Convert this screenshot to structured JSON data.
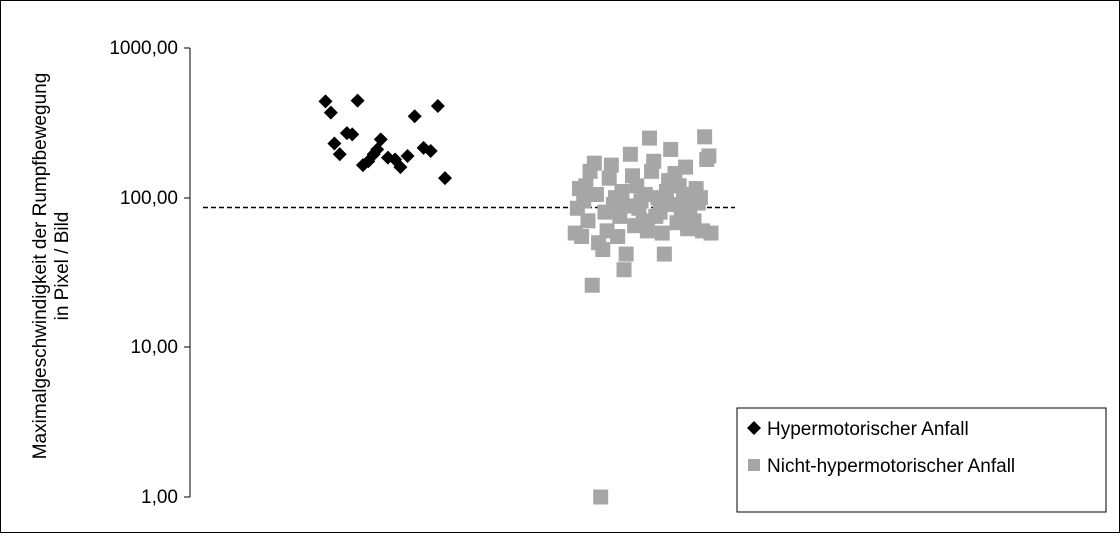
{
  "chart_data": {
    "type": "scatter",
    "title": "",
    "ylabel_lines": [
      "Maximalgeschwindigkeit der Rumpfbewegung",
      "in Pixel / Bild"
    ],
    "xlabel": "",
    "yscale": "log",
    "ylim": [
      1,
      1000
    ],
    "yticks": [
      {
        "value": 1,
        "label": "1,00"
      },
      {
        "value": 10,
        "label": "10,00"
      },
      {
        "value": 100,
        "label": "100,00"
      },
      {
        "value": 1000,
        "label": "1000,00"
      }
    ],
    "threshold": 86,
    "legend_position": "bottom-right",
    "series": [
      {
        "name": "Hypermotorischer Anfall",
        "marker": "diamond",
        "color": "#000000",
        "points": [
          {
            "x": 0.07,
            "y": 440
          },
          {
            "x": 0.1,
            "y": 370
          },
          {
            "x": 0.12,
            "y": 230
          },
          {
            "x": 0.15,
            "y": 195
          },
          {
            "x": 0.19,
            "y": 270
          },
          {
            "x": 0.22,
            "y": 265
          },
          {
            "x": 0.25,
            "y": 445
          },
          {
            "x": 0.28,
            "y": 165
          },
          {
            "x": 0.31,
            "y": 175
          },
          {
            "x": 0.34,
            "y": 195
          },
          {
            "x": 0.36,
            "y": 210
          },
          {
            "x": 0.38,
            "y": 245
          },
          {
            "x": 0.42,
            "y": 185
          },
          {
            "x": 0.46,
            "y": 180
          },
          {
            "x": 0.49,
            "y": 160
          },
          {
            "x": 0.53,
            "y": 190
          },
          {
            "x": 0.57,
            "y": 350
          },
          {
            "x": 0.62,
            "y": 215
          },
          {
            "x": 0.66,
            "y": 205
          },
          {
            "x": 0.7,
            "y": 410
          },
          {
            "x": 0.74,
            "y": 135
          }
        ]
      },
      {
        "name": "Nicht-hypermotorischer Anfall",
        "marker": "square",
        "color": "#a6a6a6",
        "points": [
          {
            "x": 0.02,
            "y": 58
          },
          {
            "x": 0.03,
            "y": 85
          },
          {
            "x": 0.04,
            "y": 115
          },
          {
            "x": 0.05,
            "y": 55
          },
          {
            "x": 0.06,
            "y": 95
          },
          {
            "x": 0.07,
            "y": 120
          },
          {
            "x": 0.08,
            "y": 70
          },
          {
            "x": 0.09,
            "y": 150
          },
          {
            "x": 0.1,
            "y": 26
          },
          {
            "x": 0.11,
            "y": 170
          },
          {
            "x": 0.12,
            "y": 105
          },
          {
            "x": 0.13,
            "y": 50
          },
          {
            "x": 0.14,
            "y": 1.0
          },
          {
            "x": 0.15,
            "y": 45
          },
          {
            "x": 0.16,
            "y": 80
          },
          {
            "x": 0.17,
            "y": 60
          },
          {
            "x": 0.18,
            "y": 135
          },
          {
            "x": 0.19,
            "y": 165
          },
          {
            "x": 0.2,
            "y": 90
          },
          {
            "x": 0.21,
            "y": 100
          },
          {
            "x": 0.22,
            "y": 55
          },
          {
            "x": 0.23,
            "y": 75
          },
          {
            "x": 0.24,
            "y": 110
          },
          {
            "x": 0.25,
            "y": 33
          },
          {
            "x": 0.26,
            "y": 42
          },
          {
            "x": 0.27,
            "y": 88
          },
          {
            "x": 0.28,
            "y": 195
          },
          {
            "x": 0.29,
            "y": 140
          },
          {
            "x": 0.3,
            "y": 65
          },
          {
            "x": 0.31,
            "y": 120
          },
          {
            "x": 0.32,
            "y": 85
          },
          {
            "x": 0.33,
            "y": 95
          },
          {
            "x": 0.34,
            "y": 70
          },
          {
            "x": 0.35,
            "y": 105
          },
          {
            "x": 0.36,
            "y": 60
          },
          {
            "x": 0.37,
            "y": 250
          },
          {
            "x": 0.38,
            "y": 150
          },
          {
            "x": 0.39,
            "y": 175
          },
          {
            "x": 0.4,
            "y": 75
          },
          {
            "x": 0.41,
            "y": 100
          },
          {
            "x": 0.42,
            "y": 80
          },
          {
            "x": 0.43,
            "y": 58
          },
          {
            "x": 0.44,
            "y": 42
          },
          {
            "x": 0.45,
            "y": 110
          },
          {
            "x": 0.46,
            "y": 130
          },
          {
            "x": 0.47,
            "y": 210
          },
          {
            "x": 0.48,
            "y": 90
          },
          {
            "x": 0.49,
            "y": 145
          },
          {
            "x": 0.5,
            "y": 68
          },
          {
            "x": 0.51,
            "y": 120
          },
          {
            "x": 0.52,
            "y": 78
          },
          {
            "x": 0.53,
            "y": 98
          },
          {
            "x": 0.54,
            "y": 160
          },
          {
            "x": 0.55,
            "y": 62
          },
          {
            "x": 0.56,
            "y": 85
          },
          {
            "x": 0.57,
            "y": 105
          },
          {
            "x": 0.58,
            "y": 70
          },
          {
            "x": 0.59,
            "y": 115
          },
          {
            "x": 0.6,
            "y": 92
          },
          {
            "x": 0.61,
            "y": 100
          },
          {
            "x": 0.62,
            "y": 60
          },
          {
            "x": 0.63,
            "y": 255
          },
          {
            "x": 0.64,
            "y": 180
          },
          {
            "x": 0.65,
            "y": 190
          },
          {
            "x": 0.66,
            "y": 58
          }
        ]
      }
    ]
  }
}
